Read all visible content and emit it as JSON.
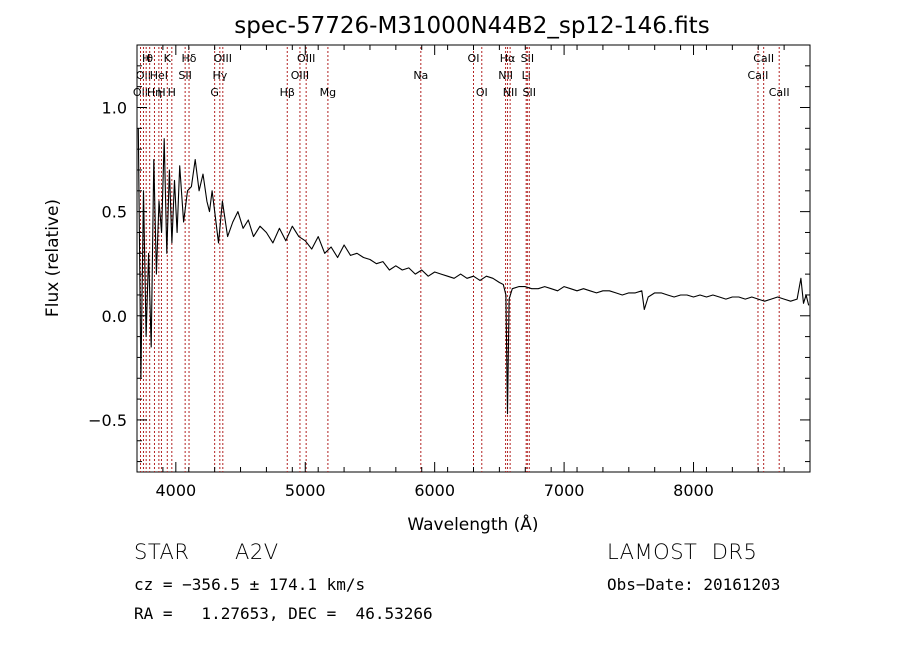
{
  "chart_data": {
    "type": "line",
    "title": "spec-57726-M31000N44B2_sp12-146.fits",
    "xlabel": "Wavelength (Å)",
    "ylabel": "Flux (relative)",
    "xlim": [
      3700,
      8900
    ],
    "ylim": [
      -0.75,
      1.3
    ],
    "x_ticks": [
      4000,
      5000,
      6000,
      7000,
      8000
    ],
    "x_tick_labels": [
      "4000",
      "5000",
      "6000",
      "7000",
      "8000"
    ],
    "y_ticks": [
      -0.5,
      0.0,
      0.5,
      1.0
    ],
    "y_tick_labels": [
      "−0.5",
      "0.0",
      "0.5",
      "1.0"
    ],
    "grid": false,
    "line_color": "#000000",
    "marker_color": "#b22222",
    "series": [
      {
        "color": "#000000",
        "x": [
          3710,
          3730,
          3750,
          3770,
          3790,
          3810,
          3830,
          3850,
          3870,
          3890,
          3910,
          3930,
          3950,
          3970,
          3990,
          4010,
          4030,
          4060,
          4090,
          4120,
          4150,
          4180,
          4210,
          4240,
          4260,
          4280,
          4300,
          4330,
          4360,
          4400,
          4440,
          4480,
          4520,
          4560,
          4600,
          4650,
          4700,
          4750,
          4800,
          4850,
          4900,
          4950,
          5000,
          5050,
          5100,
          5150,
          5200,
          5250,
          5300,
          5350,
          5400,
          5450,
          5500,
          5550,
          5600,
          5650,
          5700,
          5750,
          5800,
          5850,
          5900,
          5950,
          6000,
          6050,
          6100,
          6150,
          6200,
          6250,
          6300,
          6350,
          6400,
          6450,
          6500,
          6530,
          6550,
          6563,
          6575,
          6600,
          6650,
          6700,
          6750,
          6800,
          6850,
          6900,
          6950,
          7000,
          7050,
          7100,
          7150,
          7200,
          7250,
          7300,
          7350,
          7400,
          7450,
          7500,
          7550,
          7600,
          7620,
          7650,
          7700,
          7750,
          7800,
          7850,
          7900,
          7950,
          8000,
          8050,
          8100,
          8150,
          8200,
          8250,
          8300,
          8350,
          8400,
          8450,
          8500,
          8550,
          8600,
          8650,
          8700,
          8750,
          8800,
          8830,
          8850,
          8870,
          8890
        ],
        "y": [
          0.9,
          -0.3,
          0.6,
          -0.1,
          0.3,
          -0.15,
          0.75,
          0.2,
          0.55,
          0.4,
          0.85,
          0.3,
          0.7,
          0.35,
          0.65,
          0.4,
          0.72,
          0.45,
          0.6,
          0.62,
          0.75,
          0.6,
          0.68,
          0.55,
          0.5,
          0.6,
          0.5,
          0.35,
          0.55,
          0.38,
          0.45,
          0.5,
          0.42,
          0.46,
          0.38,
          0.43,
          0.4,
          0.35,
          0.42,
          0.36,
          0.43,
          0.38,
          0.36,
          0.32,
          0.38,
          0.3,
          0.33,
          0.28,
          0.34,
          0.29,
          0.3,
          0.28,
          0.27,
          0.25,
          0.26,
          0.22,
          0.24,
          0.22,
          0.23,
          0.2,
          0.22,
          0.19,
          0.21,
          0.2,
          0.19,
          0.18,
          0.2,
          0.18,
          0.19,
          0.17,
          0.19,
          0.18,
          0.16,
          0.15,
          0.1,
          -0.47,
          0.08,
          0.13,
          0.14,
          0.14,
          0.13,
          0.13,
          0.14,
          0.13,
          0.12,
          0.14,
          0.13,
          0.12,
          0.13,
          0.12,
          0.11,
          0.12,
          0.12,
          0.11,
          0.1,
          0.11,
          0.11,
          0.12,
          0.03,
          0.09,
          0.11,
          0.11,
          0.1,
          0.09,
          0.1,
          0.1,
          0.09,
          0.1,
          0.09,
          0.1,
          0.09,
          0.08,
          0.09,
          0.09,
          0.08,
          0.09,
          0.08,
          0.07,
          0.08,
          0.09,
          0.08,
          0.07,
          0.08,
          0.18,
          0.06,
          0.1,
          0.05
        ]
      }
    ],
    "lines": [
      {
        "x": 3727,
        "label": "OII",
        "row": 3
      },
      {
        "x": 3750,
        "label": "OII",
        "row": 2
      },
      {
        "x": 3771,
        "label": "H",
        "row": 1
      },
      {
        "x": 3798,
        "label": "θ",
        "row": 1
      },
      {
        "x": 3835,
        "label": "Hη",
        "row": 3
      },
      {
        "x": 3869,
        "label": "HeI",
        "row": 2
      },
      {
        "x": 3889,
        "label": "H",
        "row": 3
      },
      {
        "x": 3934,
        "label": "K",
        "row": 1
      },
      {
        "x": 3969,
        "label": "H",
        "row": 3
      },
      {
        "x": 4072,
        "label": "SII",
        "row": 2
      },
      {
        "x": 4102,
        "label": "Hδ",
        "row": 1
      },
      {
        "x": 4300,
        "label": "G",
        "row": 3
      },
      {
        "x": 4340,
        "label": "Hγ",
        "row": 2
      },
      {
        "x": 4363,
        "label": "OIII",
        "row": 1
      },
      {
        "x": 4861,
        "label": "Hβ",
        "row": 3
      },
      {
        "x": 4959,
        "label": "OIII",
        "row": 2
      },
      {
        "x": 5007,
        "label": "OIII",
        "row": 1
      },
      {
        "x": 5175,
        "label": "Mg",
        "row": 3
      },
      {
        "x": 5893,
        "label": "Na",
        "row": 2
      },
      {
        "x": 6300,
        "label": "OI",
        "row": 1
      },
      {
        "x": 6364,
        "label": "OI",
        "row": 3
      },
      {
        "x": 6548,
        "label": "NII",
        "row": 2
      },
      {
        "x": 6563,
        "label": "Hα",
        "row": 1
      },
      {
        "x": 6583,
        "label": "NII",
        "row": 3
      },
      {
        "x": 6707,
        "label": "Li",
        "row": 2
      },
      {
        "x": 6716,
        "label": "SII",
        "row": 1
      },
      {
        "x": 6731,
        "label": "SII",
        "row": 3
      },
      {
        "x": 8498,
        "label": "CaII",
        "row": 2
      },
      {
        "x": 8542,
        "label": "CaII",
        "row": 1
      },
      {
        "x": 8662,
        "label": "CaII",
        "row": 3
      }
    ]
  },
  "info": {
    "class_label": "STAR",
    "subclass_label": "A2V",
    "survey": "LAMOST  DR5",
    "cz": "cz = −356.5 ± 174.1 km/s",
    "obs_date": "Obs−Date: 20161203",
    "coords": "RA =   1.27653, DEC =  46.53266"
  }
}
